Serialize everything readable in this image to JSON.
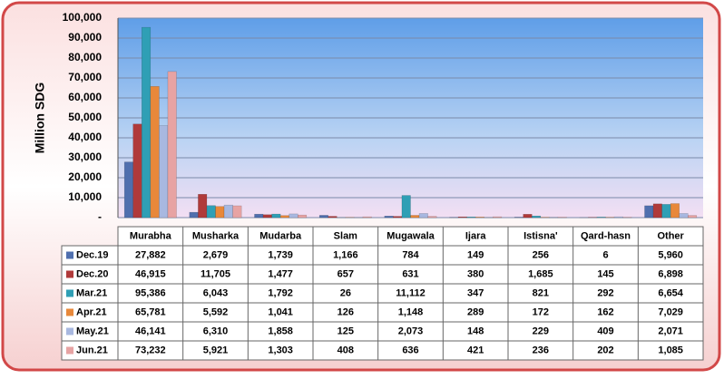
{
  "chart_data": {
    "type": "bar",
    "y_axis_label": "Million SDG",
    "categories": [
      "Murabha",
      "Musharka",
      "Mudarba",
      "Slam",
      "Mugawala",
      "Ijara",
      "Istisna'",
      "Qard-hasn",
      "Other"
    ],
    "series": [
      {
        "name": "Dec.19",
        "color": "#4f6fae",
        "values": [
          27882,
          2679,
          1739,
          1166,
          784,
          149,
          256,
          6,
          5960
        ],
        "value_labels": [
          "27,882",
          "2,679",
          "1,739",
          "1,166",
          "784",
          "149",
          "256",
          "6",
          "5,960"
        ]
      },
      {
        "name": "Dec.20",
        "color": "#b03a3a",
        "values": [
          46915,
          11705,
          1477,
          657,
          631,
          380,
          1685,
          145,
          6898
        ],
        "value_labels": [
          "46,915",
          "11,705",
          "1,477",
          "657",
          "631",
          "380",
          "1,685",
          "145",
          "6,898"
        ]
      },
      {
        "name": "Mar.21",
        "color": "#2f9fb5",
        "values": [
          95386,
          6043,
          1792,
          26,
          11112,
          347,
          821,
          292,
          6654
        ],
        "value_labels": [
          "95,386",
          "6,043",
          "1,792",
          "26",
          "11,112",
          "347",
          "821",
          "292",
          "6,654"
        ]
      },
      {
        "name": "Apr.21",
        "color": "#e8883a",
        "values": [
          65781,
          5592,
          1041,
          126,
          1148,
          289,
          172,
          162,
          7029
        ],
        "value_labels": [
          "65,781",
          "5,592",
          "1,041",
          "126",
          "1,148",
          "289",
          "172",
          "162",
          "7,029"
        ]
      },
      {
        "name": "May.21",
        "color": "#a8b8e0",
        "values": [
          46141,
          6310,
          1858,
          125,
          2073,
          148,
          229,
          409,
          2071
        ],
        "value_labels": [
          "46,141",
          "6,310",
          "1,858",
          "125",
          "2,073",
          "148",
          "229",
          "409",
          "2,071"
        ]
      },
      {
        "name": "Jun.21",
        "color": "#e7a3a3",
        "values": [
          73232,
          5921,
          1303,
          408,
          636,
          421,
          236,
          202,
          1085
        ],
        "value_labels": [
          "73,232",
          "5,921",
          "1,303",
          "408",
          "636",
          "421",
          "236",
          "202",
          "1,085"
        ]
      }
    ],
    "ylim": [
      0,
      100000
    ],
    "yticks": [
      {
        "value": 0,
        "label": "-"
      },
      {
        "value": 10000,
        "label": "10,000"
      },
      {
        "value": 20000,
        "label": "20,000"
      },
      {
        "value": 30000,
        "label": "30,000"
      },
      {
        "value": 40000,
        "label": "40,000"
      },
      {
        "value": 50000,
        "label": "50,000"
      },
      {
        "value": 60000,
        "label": "60,000"
      },
      {
        "value": 70000,
        "label": "70,000"
      },
      {
        "value": 80000,
        "label": "80,000"
      },
      {
        "value": 90000,
        "label": "90,000"
      },
      {
        "value": 100000,
        "label": "100,000"
      }
    ],
    "grid": true
  }
}
